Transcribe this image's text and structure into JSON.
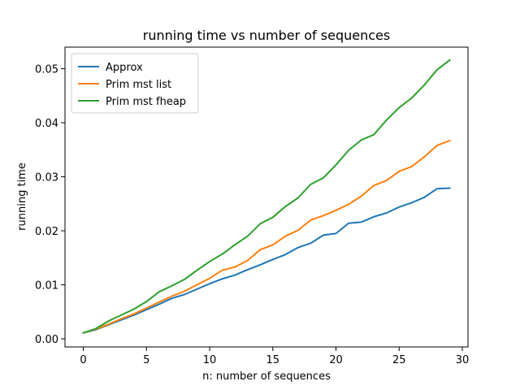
{
  "chart_data": {
    "type": "line",
    "title": "running time vs number of sequences",
    "xlabel": "n: number of sequences",
    "ylabel": "running time",
    "xlim": [
      -1.45,
      30.45
    ],
    "ylim": [
      -0.0015,
      0.054
    ],
    "xticks": [
      0,
      5,
      10,
      15,
      20,
      25,
      30
    ],
    "xtick_labels": [
      "0",
      "5",
      "10",
      "15",
      "20",
      "25",
      "30"
    ],
    "yticks": [
      0.0,
      0.01,
      0.02,
      0.03,
      0.04,
      0.05
    ],
    "ytick_labels": [
      "0.00",
      "0.01",
      "0.02",
      "0.03",
      "0.04",
      "0.05"
    ],
    "grid": false,
    "legend_position": "top-left",
    "x": [
      0,
      1,
      2,
      3,
      4,
      5,
      6,
      7,
      8,
      9,
      10,
      11,
      12,
      13,
      14,
      15,
      16,
      17,
      18,
      19,
      20,
      21,
      22,
      23,
      24,
      25,
      26,
      27,
      28,
      29
    ],
    "series": [
      {
        "name": "Approx",
        "color": "#1f77b4",
        "values": [
          0.0011,
          0.0017,
          0.0026,
          0.0035,
          0.0044,
          0.0054,
          0.0064,
          0.0075,
          0.0082,
          0.0092,
          0.0102,
          0.0111,
          0.0118,
          0.0128,
          0.0137,
          0.0147,
          0.0156,
          0.0169,
          0.0177,
          0.0192,
          0.0195,
          0.0214,
          0.0216,
          0.0226,
          0.0233,
          0.0244,
          0.0252,
          0.0262,
          0.0278,
          0.0279
        ]
      },
      {
        "name": "Prim mst list",
        "color": "#ff7f0e",
        "values": [
          0.0011,
          0.0018,
          0.0027,
          0.0037,
          0.0046,
          0.0057,
          0.0068,
          0.0079,
          0.0088,
          0.01,
          0.0112,
          0.0127,
          0.0133,
          0.0145,
          0.0165,
          0.0174,
          0.019,
          0.0201,
          0.022,
          0.0228,
          0.0238,
          0.0249,
          0.0264,
          0.0284,
          0.0293,
          0.031,
          0.0319,
          0.0337,
          0.0358,
          0.0367
        ]
      },
      {
        "name": "Prim mst fheap",
        "color": "#2ca02c",
        "values": [
          0.0011,
          0.0019,
          0.0033,
          0.0044,
          0.0055,
          0.0069,
          0.0087,
          0.0098,
          0.011,
          0.0127,
          0.0143,
          0.0157,
          0.0174,
          0.019,
          0.0213,
          0.0225,
          0.0245,
          0.0261,
          0.0286,
          0.0298,
          0.0322,
          0.0349,
          0.0368,
          0.0378,
          0.0405,
          0.0428,
          0.0446,
          0.047,
          0.0498,
          0.0516
        ]
      }
    ]
  }
}
